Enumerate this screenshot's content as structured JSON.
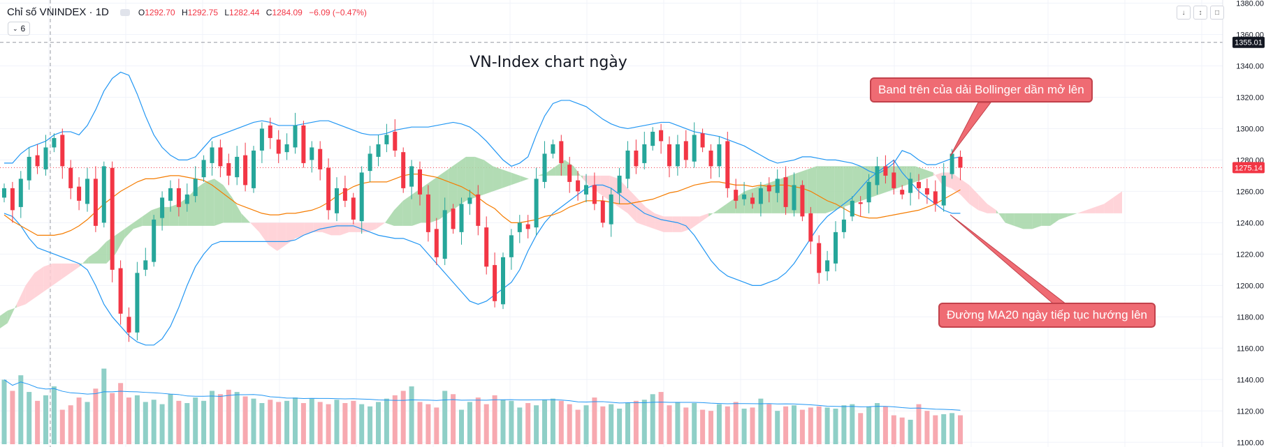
{
  "legend": {
    "symbol": "Chỉ số VNINDEX · 1D",
    "o_label": "O",
    "o_value": "1292.70",
    "h_label": "H",
    "h_value": "1292.75",
    "l_label": "L",
    "l_value": "1282.44",
    "c_label": "C",
    "c_value": "1284.09",
    "change": "−6.09 (−0.47%)",
    "indicator_count": "6",
    "eye_icon": "eye-icon",
    "chevron_icon": "chevron-down-icon"
  },
  "toolbar": {
    "down_icon": "arrow-down-icon",
    "collapse_icon": "collapse-icon",
    "fullscreen_icon": "fullscreen-icon"
  },
  "callouts": {
    "bollinger": "Band trên của dải Bollinger dần mở lên",
    "ma20": "Đường MA20 ngày tiếp tục hướng lên"
  },
  "colors": {
    "up": "#26a69a",
    "down": "#f23645",
    "bb": "#2196f3",
    "ma20": "#f57c00",
    "kumo_up": "#a5d6a7",
    "kumo_down": "#ffcdd2",
    "callout": "#ef6b73"
  },
  "chart_data": {
    "type": "candlestick",
    "title": "VN-Index chart ngày",
    "y_axis": {
      "ticks": [
        "1380.00",
        "1360.00",
        "1340.00",
        "1320.00",
        "1300.00",
        "1280.00",
        "1260.00",
        "1240.00",
        "1220.00",
        "1200.00",
        "1180.00",
        "1160.00",
        "1140.00",
        "1120.00",
        "1100.00"
      ],
      "range": [
        1097,
        1382
      ]
    },
    "price_labels": [
      {
        "text": "1355.01",
        "price": 1355.01,
        "color": "#131722"
      },
      {
        "text": "1275.14",
        "price": 1275.14,
        "color": "#f23645"
      }
    ],
    "closes": [
      1262,
      1248,
      1268,
      1282,
      1276,
      1288,
      1294,
      1276,
      1262,
      1254,
      1268,
      1238,
      1276,
      1210,
      1182,
      1170,
      1208,
      1216,
      1242,
      1256,
      1262,
      1250,
      1258,
      1268,
      1280,
      1288,
      1276,
      1270,
      1282,
      1264,
      1286,
      1300,
      1294,
      1284,
      1290,
      1302,
      1278,
      1288,
      1274,
      1248,
      1262,
      1254,
      1242,
      1272,
      1284,
      1290,
      1296,
      1286,
      1262,
      1276,
      1258,
      1234,
      1218,
      1248,
      1236,
      1252,
      1256,
      1238,
      1212,
      1190,
      1218,
      1232,
      1240,
      1236,
      1268,
      1284,
      1290,
      1278,
      1266,
      1260,
      1264,
      1252,
      1240,
      1258,
      1270,
      1286,
      1276,
      1290,
      1298,
      1292,
      1276,
      1290,
      1280,
      1296,
      1288,
      1276,
      1290,
      1262,
      1254,
      1258,
      1252,
      1262,
      1260,
      1268,
      1250,
      1264,
      1244,
      1228,
      1208,
      1216,
      1234,
      1242,
      1254,
      1252,
      1266,
      1276,
      1270,
      1262,
      1258,
      1268,
      1262,
      1258,
      1252,
      1270,
      1284,
      1275.14
    ],
    "volumes": [
      58,
      48,
      62,
      47,
      39,
      44,
      52,
      31,
      35,
      42,
      38,
      50,
      68,
      46,
      55,
      42,
      44,
      38,
      40,
      36,
      45,
      39,
      37,
      42,
      39,
      48,
      45,
      49,
      47,
      43,
      41,
      37,
      40,
      38,
      39,
      42,
      37,
      41,
      38,
      36,
      40,
      37,
      39,
      36,
      34,
      38,
      41,
      44,
      48,
      52,
      38,
      36,
      33,
      48,
      45,
      31,
      38,
      42,
      36,
      44,
      40,
      39,
      33,
      37,
      35,
      40,
      41,
      39,
      36,
      31,
      35,
      42,
      34,
      36,
      32,
      37,
      39,
      40,
      45,
      47,
      35,
      38,
      33,
      37,
      31,
      30,
      36,
      34,
      38,
      32,
      33,
      41,
      36,
      30,
      34,
      35,
      31,
      33,
      34,
      33,
      32,
      35,
      36,
      28,
      34,
      37,
      34,
      26,
      24,
      22,
      36,
      30,
      26,
      27,
      28,
      26
    ],
    "ma20": [
      1245,
      1241,
      1238,
      1235,
      1232,
      1232,
      1232,
      1233,
      1235,
      1238,
      1242,
      1247,
      1252,
      1256,
      1260,
      1263,
      1266,
      1268,
      1268,
      1269,
      1270,
      1270,
      1269,
      1268,
      1267,
      1264,
      1260,
      1256,
      1252,
      1250,
      1248,
      1246,
      1245,
      1245,
      1246,
      1246,
      1247,
      1248,
      1250,
      1253,
      1257,
      1260,
      1263,
      1265,
      1266,
      1266,
      1266,
      1268,
      1270,
      1271,
      1271,
      1270,
      1269,
      1267,
      1265,
      1263,
      1260,
      1256,
      1252,
      1249,
      1244,
      1240,
      1240,
      1241,
      1242,
      1244,
      1245,
      1247,
      1250,
      1252,
      1254,
      1254,
      1254,
      1253,
      1252,
      1252,
      1253,
      1254,
      1255,
      1257,
      1259,
      1260,
      1262,
      1264,
      1265,
      1266,
      1266,
      1265,
      1264,
      1264,
      1263,
      1264,
      1263,
      1264,
      1264,
      1263,
      1262,
      1260,
      1257,
      1254,
      1252,
      1249,
      1246,
      1244,
      1243,
      1243,
      1244,
      1245,
      1246,
      1247,
      1248,
      1250,
      1252,
      1255,
      1258,
      1261
    ],
    "bb_upper": [
      1278,
      1278,
      1284,
      1288,
      1290,
      1292,
      1296,
      1298,
      1298,
      1296,
      1302,
      1312,
      1324,
      1332,
      1336,
      1334,
      1322,
      1308,
      1296,
      1288,
      1283,
      1280,
      1280,
      1282,
      1288,
      1294,
      1296,
      1298,
      1300,
      1302,
      1304,
      1305,
      1304,
      1302,
      1302,
      1302,
      1303,
      1304,
      1305,
      1305,
      1303,
      1301,
      1299,
      1297,
      1296,
      1296,
      1297,
      1299,
      1300,
      1301,
      1301,
      1301,
      1302,
      1303,
      1304,
      1303,
      1301,
      1297,
      1292,
      1286,
      1280,
      1276,
      1278,
      1282,
      1296,
      1308,
      1316,
      1318,
      1318,
      1316,
      1314,
      1310,
      1306,
      1303,
      1301,
      1300,
      1301,
      1302,
      1303,
      1304,
      1304,
      1302,
      1300,
      1298,
      1297,
      1296,
      1295,
      1293,
      1291,
      1289,
      1286,
      1283,
      1280,
      1278,
      1279,
      1280,
      1282,
      1282,
      1281,
      1280,
      1280,
      1279,
      1278,
      1276,
      1273,
      1271,
      1274,
      1278,
      1286,
      1284,
      1280,
      1277,
      1277,
      1279,
      1281,
      1282
    ],
    "bb_lower": [
      1246,
      1244,
      1238,
      1230,
      1224,
      1222,
      1220,
      1218,
      1216,
      1214,
      1210,
      1200,
      1188,
      1180,
      1174,
      1168,
      1164,
      1162,
      1162,
      1166,
      1174,
      1186,
      1200,
      1212,
      1220,
      1226,
      1228,
      1228,
      1228,
      1228,
      1228,
      1228,
      1228,
      1228,
      1228,
      1229,
      1232,
      1234,
      1236,
      1237,
      1238,
      1238,
      1238,
      1236,
      1234,
      1232,
      1231,
      1230,
      1230,
      1228,
      1226,
      1220,
      1214,
      1208,
      1202,
      1196,
      1190,
      1188,
      1190,
      1194,
      1198,
      1202,
      1210,
      1222,
      1232,
      1240,
      1246,
      1250,
      1254,
      1258,
      1262,
      1264,
      1264,
      1262,
      1258,
      1254,
      1250,
      1246,
      1244,
      1242,
      1241,
      1240,
      1238,
      1232,
      1224,
      1216,
      1210,
      1206,
      1204,
      1202,
      1200,
      1200,
      1202,
      1204,
      1208,
      1214,
      1222,
      1230,
      1238,
      1244,
      1248,
      1252,
      1256,
      1262,
      1268,
      1272,
      1276,
      1280,
      1272,
      1266,
      1260,
      1256,
      1252,
      1248,
      1246,
      1246
    ],
    "kumo_shifted": [
      {
        "a": 1180,
        "b": 1172
      },
      {
        "a": 1184,
        "b": 1176
      },
      {
        "a": 1186,
        "b": 1188
      },
      {
        "a": 1188,
        "b": 1200
      },
      {
        "a": 1192,
        "b": 1208
      },
      {
        "a": 1196,
        "b": 1212
      },
      {
        "a": 1200,
        "b": 1214
      },
      {
        "a": 1204,
        "b": 1214
      },
      {
        "a": 1208,
        "b": 1214
      },
      {
        "a": 1212,
        "b": 1214
      },
      {
        "a": 1218,
        "b": 1214
      },
      {
        "a": 1222,
        "b": 1214
      },
      {
        "a": 1228,
        "b": 1214
      },
      {
        "a": 1232,
        "b": 1220
      },
      {
        "a": 1236,
        "b": 1230
      },
      {
        "a": 1240,
        "b": 1236
      },
      {
        "a": 1244,
        "b": 1238
      },
      {
        "a": 1248,
        "b": 1238
      },
      {
        "a": 1250,
        "b": 1238
      },
      {
        "a": 1250,
        "b": 1238
      },
      {
        "a": 1252,
        "b": 1238
      },
      {
        "a": 1256,
        "b": 1238
      },
      {
        "a": 1262,
        "b": 1238
      },
      {
        "a": 1266,
        "b": 1238
      },
      {
        "a": 1268,
        "b": 1238
      },
      {
        "a": 1264,
        "b": 1240
      },
      {
        "a": 1256,
        "b": 1240
      },
      {
        "a": 1246,
        "b": 1240
      },
      {
        "a": 1240,
        "b": 1240
      },
      {
        "a": 1234,
        "b": 1240
      },
      {
        "a": 1226,
        "b": 1240
      },
      {
        "a": 1222,
        "b": 1240
      },
      {
        "a": 1226,
        "b": 1240
      },
      {
        "a": 1230,
        "b": 1240
      },
      {
        "a": 1232,
        "b": 1240
      },
      {
        "a": 1234,
        "b": 1240
      },
      {
        "a": 1234,
        "b": 1240
      },
      {
        "a": 1232,
        "b": 1240
      },
      {
        "a": 1232,
        "b": 1240
      },
      {
        "a": 1234,
        "b": 1240
      },
      {
        "a": 1234,
        "b": 1240
      },
      {
        "a": 1234,
        "b": 1240
      },
      {
        "a": 1236,
        "b": 1240
      },
      {
        "a": 1240,
        "b": 1240
      },
      {
        "a": 1248,
        "b": 1238
      },
      {
        "a": 1254,
        "b": 1238
      },
      {
        "a": 1258,
        "b": 1238
      },
      {
        "a": 1262,
        "b": 1240
      },
      {
        "a": 1266,
        "b": 1240
      },
      {
        "a": 1270,
        "b": 1242
      },
      {
        "a": 1274,
        "b": 1246
      },
      {
        "a": 1278,
        "b": 1250
      },
      {
        "a": 1282,
        "b": 1254
      },
      {
        "a": 1282,
        "b": 1256
      },
      {
        "a": 1280,
        "b": 1258
      },
      {
        "a": 1276,
        "b": 1260
      },
      {
        "a": 1274,
        "b": 1262
      },
      {
        "a": 1272,
        "b": 1264
      },
      {
        "a": 1270,
        "b": 1266
      },
      {
        "a": 1268,
        "b": 1268
      },
      {
        "a": 1270,
        "b": 1270
      },
      {
        "a": 1272,
        "b": 1270
      },
      {
        "a": 1276,
        "b": 1270
      },
      {
        "a": 1280,
        "b": 1270
      },
      {
        "a": 1276,
        "b": 1270
      },
      {
        "a": 1268,
        "b": 1270
      },
      {
        "a": 1262,
        "b": 1270
      },
      {
        "a": 1258,
        "b": 1270
      },
      {
        "a": 1254,
        "b": 1270
      },
      {
        "a": 1250,
        "b": 1268
      },
      {
        "a": 1246,
        "b": 1262
      },
      {
        "a": 1240,
        "b": 1256
      },
      {
        "a": 1238,
        "b": 1250
      },
      {
        "a": 1236,
        "b": 1246
      },
      {
        "a": 1234,
        "b": 1244
      },
      {
        "a": 1234,
        "b": 1244
      },
      {
        "a": 1234,
        "b": 1244
      },
      {
        "a": 1236,
        "b": 1244
      },
      {
        "a": 1240,
        "b": 1244
      },
      {
        "a": 1244,
        "b": 1246
      },
      {
        "a": 1248,
        "b": 1246
      },
      {
        "a": 1252,
        "b": 1246
      },
      {
        "a": 1256,
        "b": 1246
      },
      {
        "a": 1260,
        "b": 1246
      },
      {
        "a": 1262,
        "b": 1246
      },
      {
        "a": 1264,
        "b": 1246
      },
      {
        "a": 1266,
        "b": 1246
      },
      {
        "a": 1268,
        "b": 1246
      },
      {
        "a": 1270,
        "b": 1246
      },
      {
        "a": 1272,
        "b": 1246
      },
      {
        "a": 1274,
        "b": 1246
      },
      {
        "a": 1276,
        "b": 1246
      },
      {
        "a": 1276,
        "b": 1246
      },
      {
        "a": 1276,
        "b": 1248
      },
      {
        "a": 1276,
        "b": 1250
      },
      {
        "a": 1276,
        "b": 1252
      },
      {
        "a": 1276,
        "b": 1254
      },
      {
        "a": 1276,
        "b": 1256
      },
      {
        "a": 1276,
        "b": 1258
      },
      {
        "a": 1276,
        "b": 1260
      },
      {
        "a": 1276,
        "b": 1262
      },
      {
        "a": 1276,
        "b": 1264
      },
      {
        "a": 1276,
        "b": 1266
      },
      {
        "a": 1274,
        "b": 1268
      },
      {
        "a": 1272,
        "b": 1270
      },
      {
        "a": 1264,
        "b": 1272
      },
      {
        "a": 1262,
        "b": 1272
      },
      {
        "a": 1258,
        "b": 1268
      },
      {
        "a": 1252,
        "b": 1264
      },
      {
        "a": 1248,
        "b": 1258
      },
      {
        "a": 1246,
        "b": 1252
      },
      {
        "a": 1246,
        "b": 1248
      },
      {
        "a": 1246,
        "b": 1240
      },
      {
        "a": 1246,
        "b": 1238
      },
      {
        "a": 1246,
        "b": 1236
      },
      {
        "a": 1246,
        "b": 1236
      },
      {
        "a": 1246,
        "b": 1238
      },
      {
        "a": 1246,
        "b": 1238
      },
      {
        "a": 1246,
        "b": 1242
      },
      {
        "a": 1246,
        "b": 1244
      },
      {
        "a": 1246,
        "b": 1246
      },
      {
        "a": 1246,
        "b": 1248
      },
      {
        "a": 1246,
        "b": 1250
      },
      {
        "a": 1246,
        "b": 1252
      },
      {
        "a": 1246,
        "b": 1256
      },
      {
        "a": 1246,
        "b": 1260
      }
    ]
  }
}
